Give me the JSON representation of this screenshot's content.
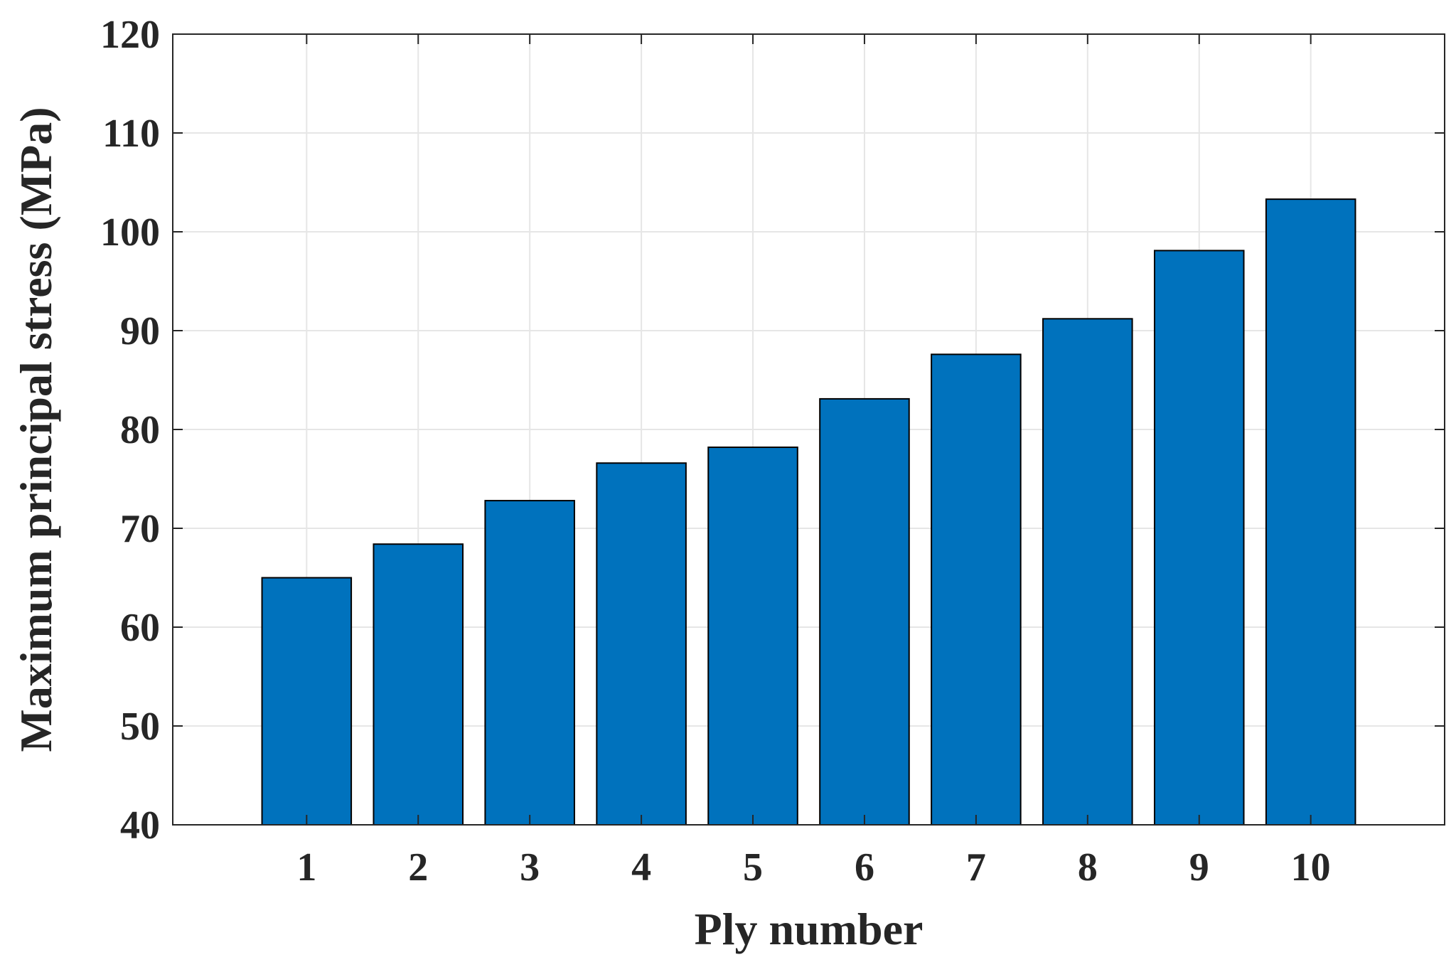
{
  "chart_data": {
    "type": "bar",
    "categories": [
      "1",
      "2",
      "3",
      "4",
      "5",
      "6",
      "7",
      "8",
      "9",
      "10"
    ],
    "values": [
      65.0,
      68.4,
      72.8,
      76.6,
      78.2,
      83.1,
      87.6,
      91.2,
      98.1,
      103.3
    ],
    "title": "",
    "xlabel": "Ply number",
    "ylabel": "Maximum principal stress (MPa)",
    "ylim": [
      40,
      120
    ],
    "yticks": [
      40,
      50,
      60,
      70,
      80,
      90,
      100,
      110,
      120
    ],
    "xlim": [
      -0.2,
      11.2
    ],
    "grid": true,
    "bar_color": "#0072BD",
    "grid_color": "#e6e6e6",
    "axis_color": "#262626"
  }
}
